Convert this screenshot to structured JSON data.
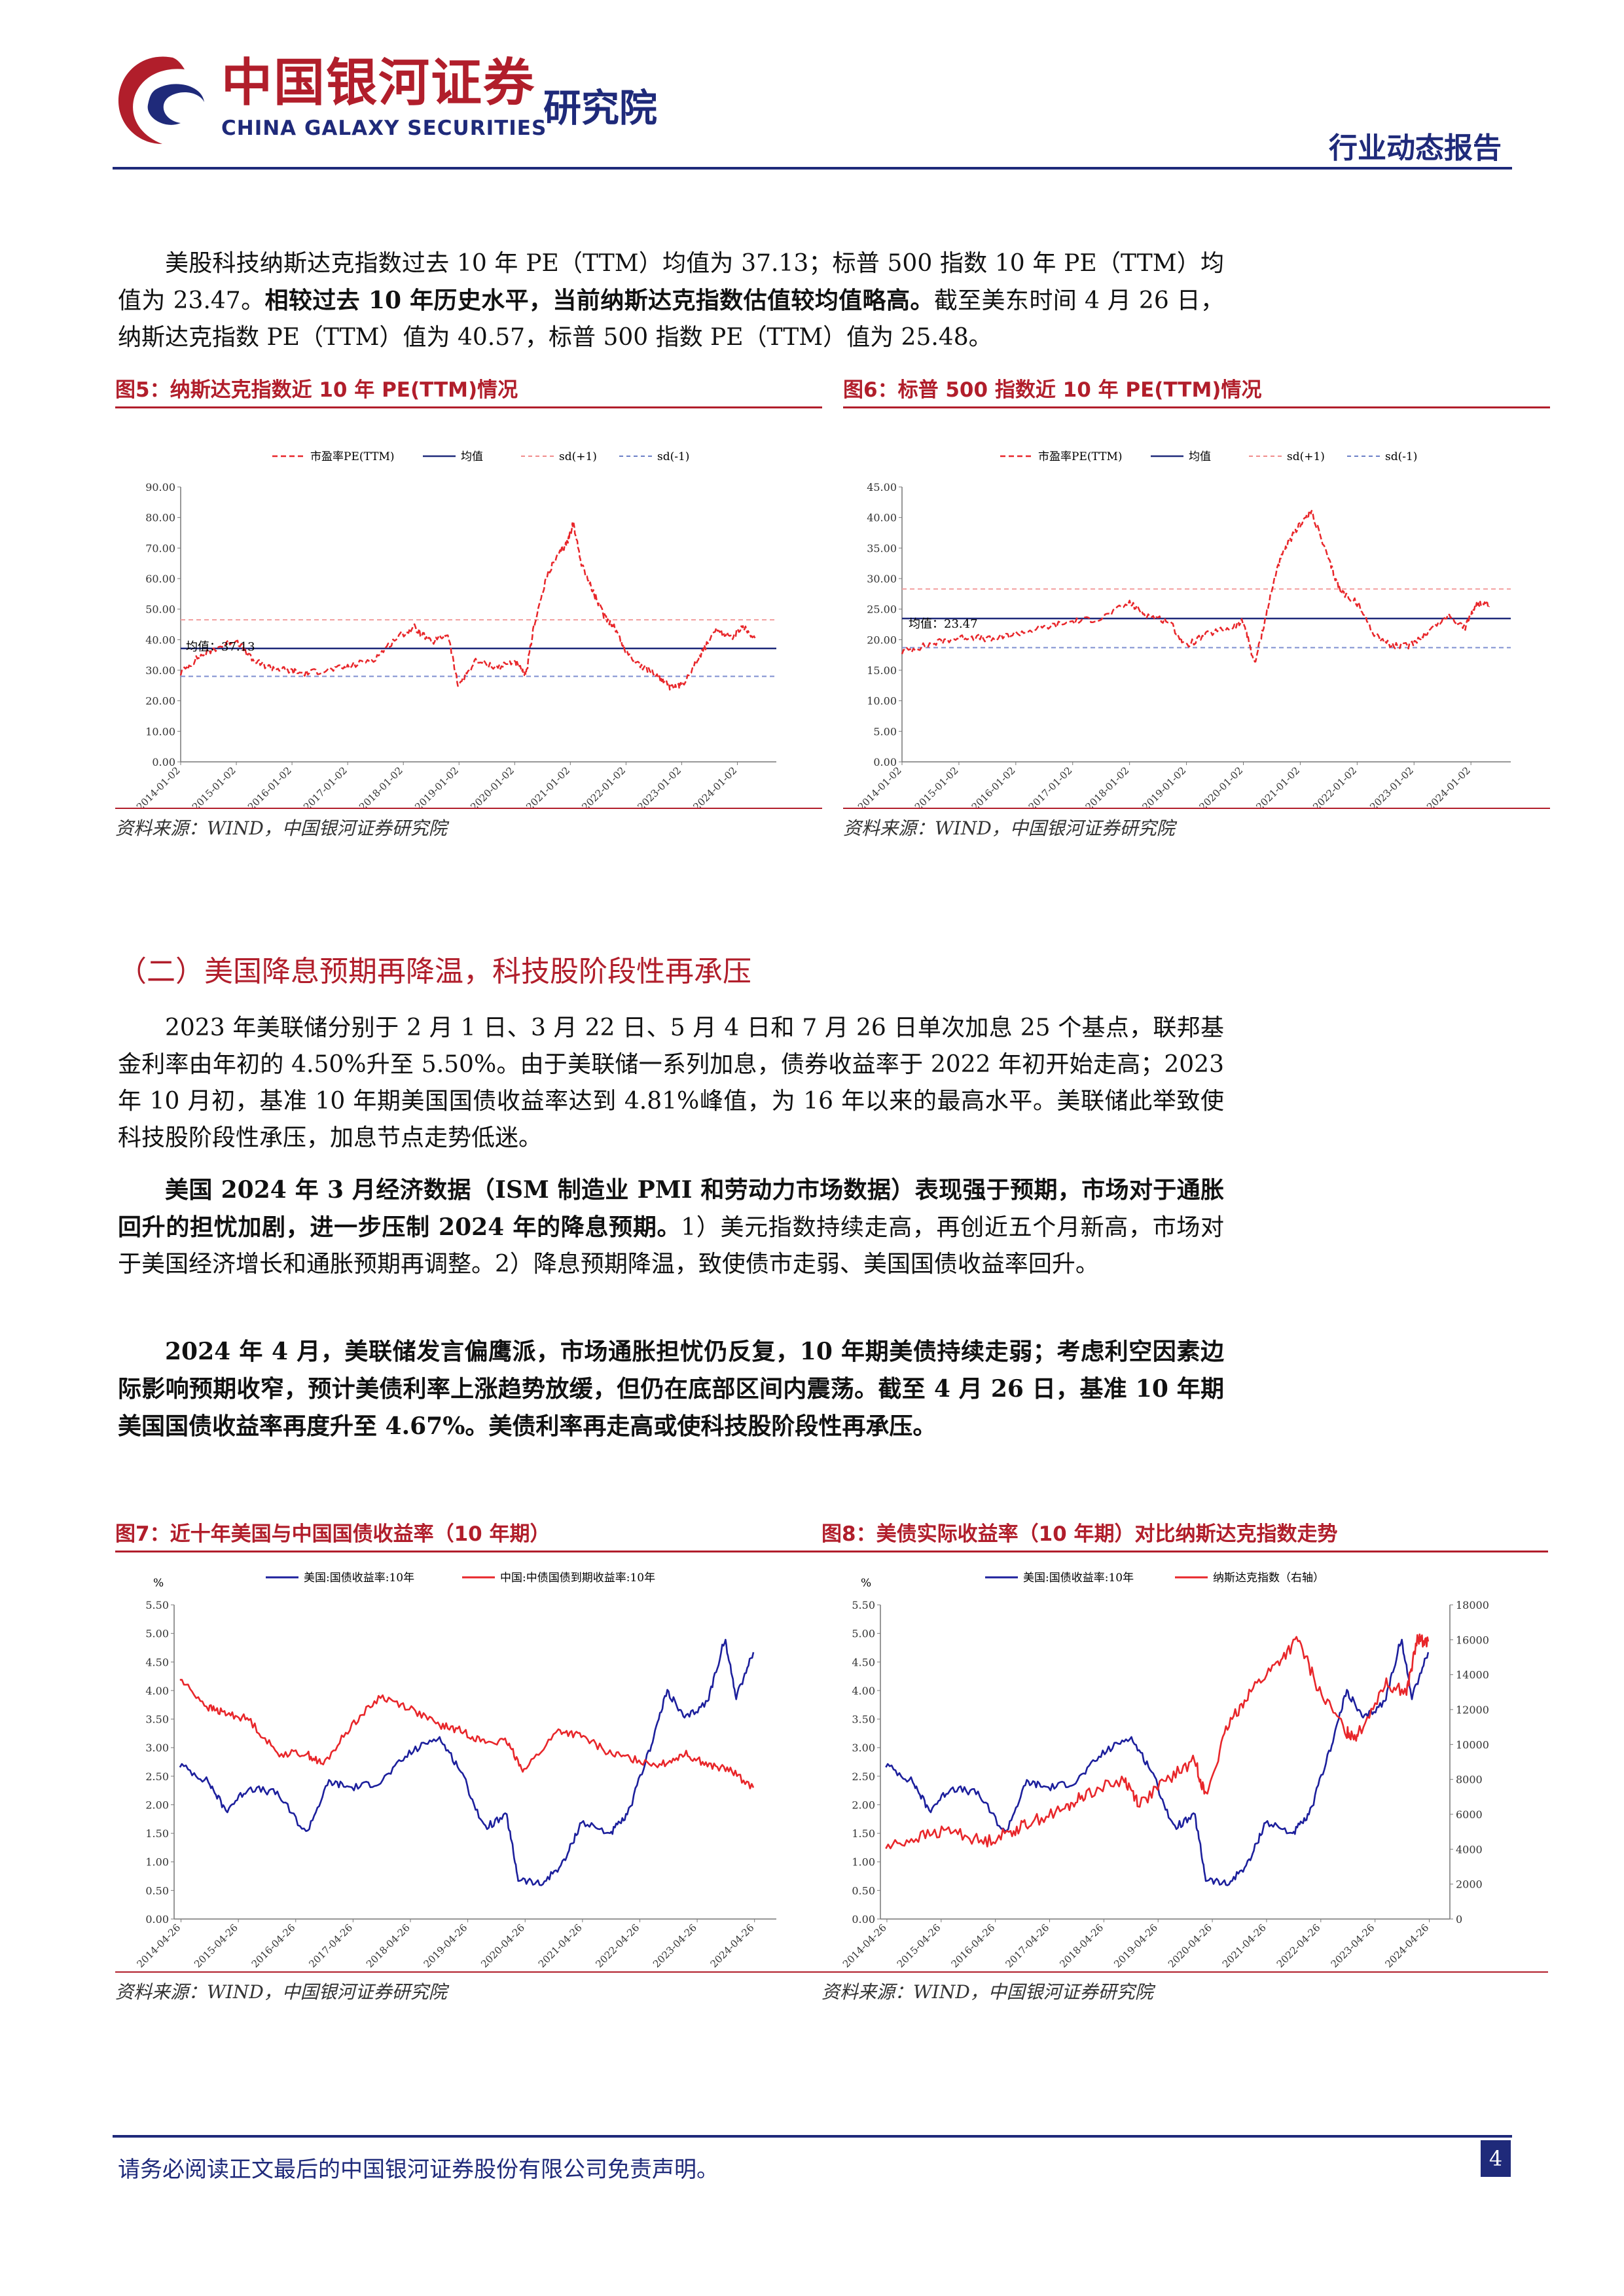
{
  "header": {
    "brand_cn": "中国银河证券",
    "brand_en": "CHINA GALAXY SECURITIES",
    "institute": "研究院",
    "report_type": "行业动态报告"
  },
  "intro_paragraph": {
    "part1": "美股科技纳斯达克指数过去 10 年 PE（TTM）均值为 37.13；标普 500 指数 10 年 PE（TTM）均值为 23.47。",
    "part2_bold": "相较过去 10 年历史水平，当前纳斯达克指数估值较均值略高。",
    "part3": "截至美东时间 4 月 26 日，纳斯达克指数 PE（TTM）值为 40.57，标普 500 指数 PE（TTM）值为 25.48。"
  },
  "figures": {
    "fig5": {
      "title": "图5：纳斯达克指数近 10 年 PE(TTM)情况",
      "source": "资料来源：WIND，中国银河证券研究院",
      "legend": [
        "市盈率PE(TTM)",
        "均值",
        "sd(+1)",
        "sd(-1)"
      ],
      "annotation": "均值：37.13"
    },
    "fig6": {
      "title": "图6：标普 500 指数近 10 年 PE(TTM)情况",
      "source": "资料来源：WIND，中国银河证券研究院",
      "legend": [
        "市盈率PE(TTM)",
        "均值",
        "sd(+1)",
        "sd(-1)"
      ],
      "annotation": "均值：23.47"
    },
    "fig7": {
      "title": "图7：近十年美国与中国国债收益率（10 年期）",
      "source": "资料来源：WIND，中国银河证券研究院",
      "legend": [
        "美国:国债收益率:10年",
        "中国:中债国债到期收益率:10年"
      ],
      "unit": "%"
    },
    "fig8": {
      "title": "图8：美债实际收益率（10 年期）对比纳斯达克指数走势",
      "source": "资料来源：WIND，中国银河证券研究院",
      "legend": [
        "美国:国债收益率:10年",
        "纳斯达克指数（右轴）"
      ],
      "unit": "%"
    }
  },
  "section_heading": "（二）美国降息预期再降温，科技股阶段性再承压",
  "paragraphs": {
    "p1": "2023 年美联储分别于 2 月 1 日、3 月 22 日、5 月 4 日和 7 月 26 日单次加息 25 个基点，联邦基金利率由年初的 4.50%升至 5.50%。由于美联储一系列加息，债券收益率于 2022 年初开始走高；2023 年 10 月初，基准 10 年期美国国债收益率达到 4.81%峰值，为 16 年以来的最高水平。美联储此举致使科技股阶段性承压，加息节点走势低迷。",
    "p2_bold": "美国 2024 年 3 月经济数据（ISM 制造业 PMI 和劳动力市场数据）表现强于预期，市场对于通胀回升的担忧加剧，进一步压制 2024 年的降息预期。",
    "p2_rest": "1）美元指数持续走高，再创近五个月新高，市场对于美国经济增长和通胀预期再调整。2）降息预期降温，致使债市走弱、美国国债收益率回升。",
    "p3_bold": "2024 年 4 月，美联储发言偏鹰派，市场通胀担忧仍反复，10 年期美债持续走弱；考虑利空因素边际影响预期收窄，预计美债利率上涨趋势放缓，但仍在底部区间内震荡。截至 4 月 26 日，基准 10 年期美国国债收益率再度升至 4.67%。美债利率再走高或使科技股阶段性再承压。"
  },
  "footer": {
    "disclaimer": "请务必阅读正文最后的中国银河证券股份有限公司免责声明。",
    "page_number": "4"
  },
  "colors": {
    "brand_red": "#b11e2b",
    "navy": "#1f2a7a",
    "series_red": "#e8262a",
    "series_blue": "#1c1f9c"
  },
  "chart_data": [
    {
      "id": "fig5",
      "type": "line",
      "x_ticks": [
        "2014-01-02",
        "2015-01-02",
        "2016-01-02",
        "2017-01-02",
        "2018-01-02",
        "2019-01-02",
        "2020-01-02",
        "2021-01-02",
        "2022-01-02",
        "2023-01-02",
        "2024-01-02"
      ],
      "y_ticks": [
        "0.00",
        "10.00",
        "20.00",
        "30.00",
        "40.00",
        "50.00",
        "60.00",
        "70.00",
        "80.00",
        "90.00"
      ],
      "ylim": [
        0,
        90
      ],
      "mean": 37.13,
      "sd_plus": 46.5,
      "sd_minus": 28.0,
      "series": [
        {
          "name": "市盈率PE(TTM)",
          "x": [
            2014.0,
            2014.3,
            2014.6,
            2015.0,
            2015.3,
            2015.6,
            2015.9,
            2016.2,
            2016.6,
            2017.0,
            2017.5,
            2017.9,
            2018.2,
            2018.5,
            2018.8,
            2018.98,
            2019.3,
            2019.7,
            2020.0,
            2020.2,
            2020.35,
            2020.6,
            2020.8,
            2020.95,
            2021.05,
            2021.2,
            2021.4,
            2021.6,
            2021.8,
            2022.0,
            2022.3,
            2022.6,
            2022.8,
            2023.0,
            2023.3,
            2023.6,
            2023.9,
            2024.1,
            2024.32
          ],
          "y": [
            29,
            34,
            37,
            40,
            33,
            31,
            30,
            29,
            30,
            31,
            34,
            41,
            44,
            39,
            42,
            25,
            33,
            31,
            33,
            28,
            45,
            62,
            68,
            72,
            78,
            65,
            56,
            48,
            44,
            36,
            31,
            28,
            24,
            25,
            34,
            43,
            41,
            44,
            40.57
          ]
        }
      ]
    },
    {
      "id": "fig6",
      "type": "line",
      "x_ticks": [
        "2014-01-02",
        "2015-01-02",
        "2016-01-02",
        "2017-01-02",
        "2018-01-02",
        "2019-01-02",
        "2020-01-02",
        "2021-01-02",
        "2022-01-02",
        "2023-01-02",
        "2024-01-02"
      ],
      "y_ticks": [
        "0.00",
        "5.00",
        "10.00",
        "15.00",
        "20.00",
        "25.00",
        "30.00",
        "35.00",
        "40.00",
        "45.00"
      ],
      "ylim": [
        0,
        45
      ],
      "mean": 23.47,
      "sd_plus": 28.3,
      "sd_minus": 18.7,
      "series": [
        {
          "name": "市盈率PE(TTM)",
          "x": [
            2014.0,
            2014.4,
            2014.8,
            2015.2,
            2015.6,
            2016.0,
            2016.5,
            2017.0,
            2017.5,
            2018.0,
            2018.3,
            2018.7,
            2018.98,
            2019.4,
            2019.8,
            2020.0,
            2020.2,
            2020.4,
            2020.6,
            2020.8,
            2021.0,
            2021.2,
            2021.5,
            2021.7,
            2022.0,
            2022.3,
            2022.6,
            2022.9,
            2023.2,
            2023.6,
            2023.9,
            2024.1,
            2024.32
          ],
          "y": [
            18,
            19,
            20,
            20.5,
            20,
            21,
            22,
            23,
            23.5,
            26,
            24,
            23,
            19,
            21,
            22,
            23,
            16,
            24,
            32,
            36,
            39,
            41,
            33,
            28,
            26,
            21,
            19,
            19,
            21,
            24,
            22,
            26,
            25.48
          ]
        }
      ]
    },
    {
      "id": "fig7",
      "type": "line",
      "x_ticks": [
        "2014-04-26",
        "2015-04-26",
        "2016-04-26",
        "2017-04-26",
        "2018-04-26",
        "2019-04-26",
        "2020-04-26",
        "2021-04-26",
        "2022-04-26",
        "2023-04-26",
        "2024-04-26"
      ],
      "y_ticks": [
        "0.00",
        "0.50",
        "1.00",
        "1.50",
        "2.00",
        "2.50",
        "3.00",
        "3.50",
        "4.00",
        "4.50",
        "5.00",
        "5.50"
      ],
      "ylim": [
        0,
        5.5
      ],
      "series": [
        {
          "name": "美国:国债收益率:10年",
          "x": [
            2014.3,
            2014.8,
            2015.1,
            2015.5,
            2016.0,
            2016.5,
            2016.9,
            2017.3,
            2017.8,
            2018.3,
            2018.8,
            2019.2,
            2019.6,
            2020.0,
            2020.2,
            2020.6,
            2021.0,
            2021.3,
            2021.8,
            2022.1,
            2022.5,
            2022.8,
            2023.1,
            2023.5,
            2023.8,
            2024.0,
            2024.3
          ],
          "y": [
            2.7,
            2.4,
            1.9,
            2.3,
            2.2,
            1.5,
            2.4,
            2.3,
            2.4,
            2.9,
            3.2,
            2.6,
            1.6,
            1.8,
            0.7,
            0.6,
            1.0,
            1.7,
            1.5,
            1.8,
            3.0,
            4.0,
            3.5,
            3.8,
            4.9,
            3.9,
            4.67
          ]
        },
        {
          "name": "中国:中债国债到期收益率:10年",
          "x": [
            2014.3,
            2014.8,
            2015.1,
            2015.5,
            2016.0,
            2016.5,
            2016.8,
            2017.3,
            2017.8,
            2018.3,
            2018.8,
            2019.2,
            2019.6,
            2020.0,
            2020.3,
            2020.9,
            2021.3,
            2021.8,
            2022.2,
            2022.7,
            2023.1,
            2023.5,
            2023.9,
            2024.3
          ],
          "y": [
            4.2,
            3.7,
            3.6,
            3.5,
            2.9,
            2.9,
            2.7,
            3.4,
            3.9,
            3.7,
            3.4,
            3.3,
            3.1,
            3.1,
            2.6,
            3.3,
            3.2,
            2.9,
            2.8,
            2.7,
            2.9,
            2.7,
            2.6,
            2.3
          ]
        }
      ]
    },
    {
      "id": "fig8",
      "type": "line",
      "x_ticks": [
        "2014-04-26",
        "2015-04-26",
        "2016-04-26",
        "2017-04-26",
        "2018-04-26",
        "2019-04-26",
        "2020-04-26",
        "2021-04-26",
        "2022-04-26",
        "2023-04-26",
        "2024-04-26"
      ],
      "y_ticks": [
        "0.00",
        "0.50",
        "1.00",
        "1.50",
        "2.00",
        "2.50",
        "3.00",
        "3.50",
        "4.00",
        "4.50",
        "5.00",
        "5.50"
      ],
      "y2_ticks": [
        "0",
        "2000",
        "4000",
        "6000",
        "8000",
        "10000",
        "12000",
        "14000",
        "16000",
        "18000"
      ],
      "ylim": [
        0,
        5.5
      ],
      "y2lim": [
        0,
        18000
      ],
      "series": [
        {
          "name": "美国:国债收益率:10年",
          "axis": "left",
          "x": [
            2014.3,
            2014.8,
            2015.1,
            2015.5,
            2016.0,
            2016.5,
            2016.9,
            2017.3,
            2017.8,
            2018.3,
            2018.8,
            2019.2,
            2019.6,
            2020.0,
            2020.2,
            2020.6,
            2021.0,
            2021.3,
            2021.8,
            2022.1,
            2022.5,
            2022.8,
            2023.1,
            2023.5,
            2023.8,
            2024.0,
            2024.3
          ],
          "y": [
            2.7,
            2.4,
            1.9,
            2.3,
            2.2,
            1.5,
            2.4,
            2.3,
            2.4,
            2.9,
            3.2,
            2.6,
            1.6,
            1.8,
            0.7,
            0.6,
            1.0,
            1.7,
            1.5,
            1.8,
            3.0,
            4.0,
            3.5,
            3.8,
            4.9,
            3.9,
            4.67
          ]
        },
        {
          "name": "纳斯达克指数（右轴）",
          "axis": "right",
          "x": [
            2014.3,
            2014.9,
            2015.5,
            2016.1,
            2016.6,
            2017.0,
            2017.6,
            2018.0,
            2018.7,
            2018.98,
            2019.5,
            2020.0,
            2020.2,
            2020.6,
            2021.0,
            2021.5,
            2021.9,
            2022.3,
            2022.8,
            2023.0,
            2023.5,
            2023.9,
            2024.1,
            2024.3
          ],
          "y": [
            4100,
            4700,
            5100,
            4400,
            5000,
            5600,
            6300,
            7200,
            8000,
            6600,
            8000,
            9100,
            7000,
            11000,
            13000,
            14600,
            16000,
            13000,
            10700,
            10500,
            13500,
            13000,
            16000,
            15900
          ]
        }
      ]
    }
  ]
}
